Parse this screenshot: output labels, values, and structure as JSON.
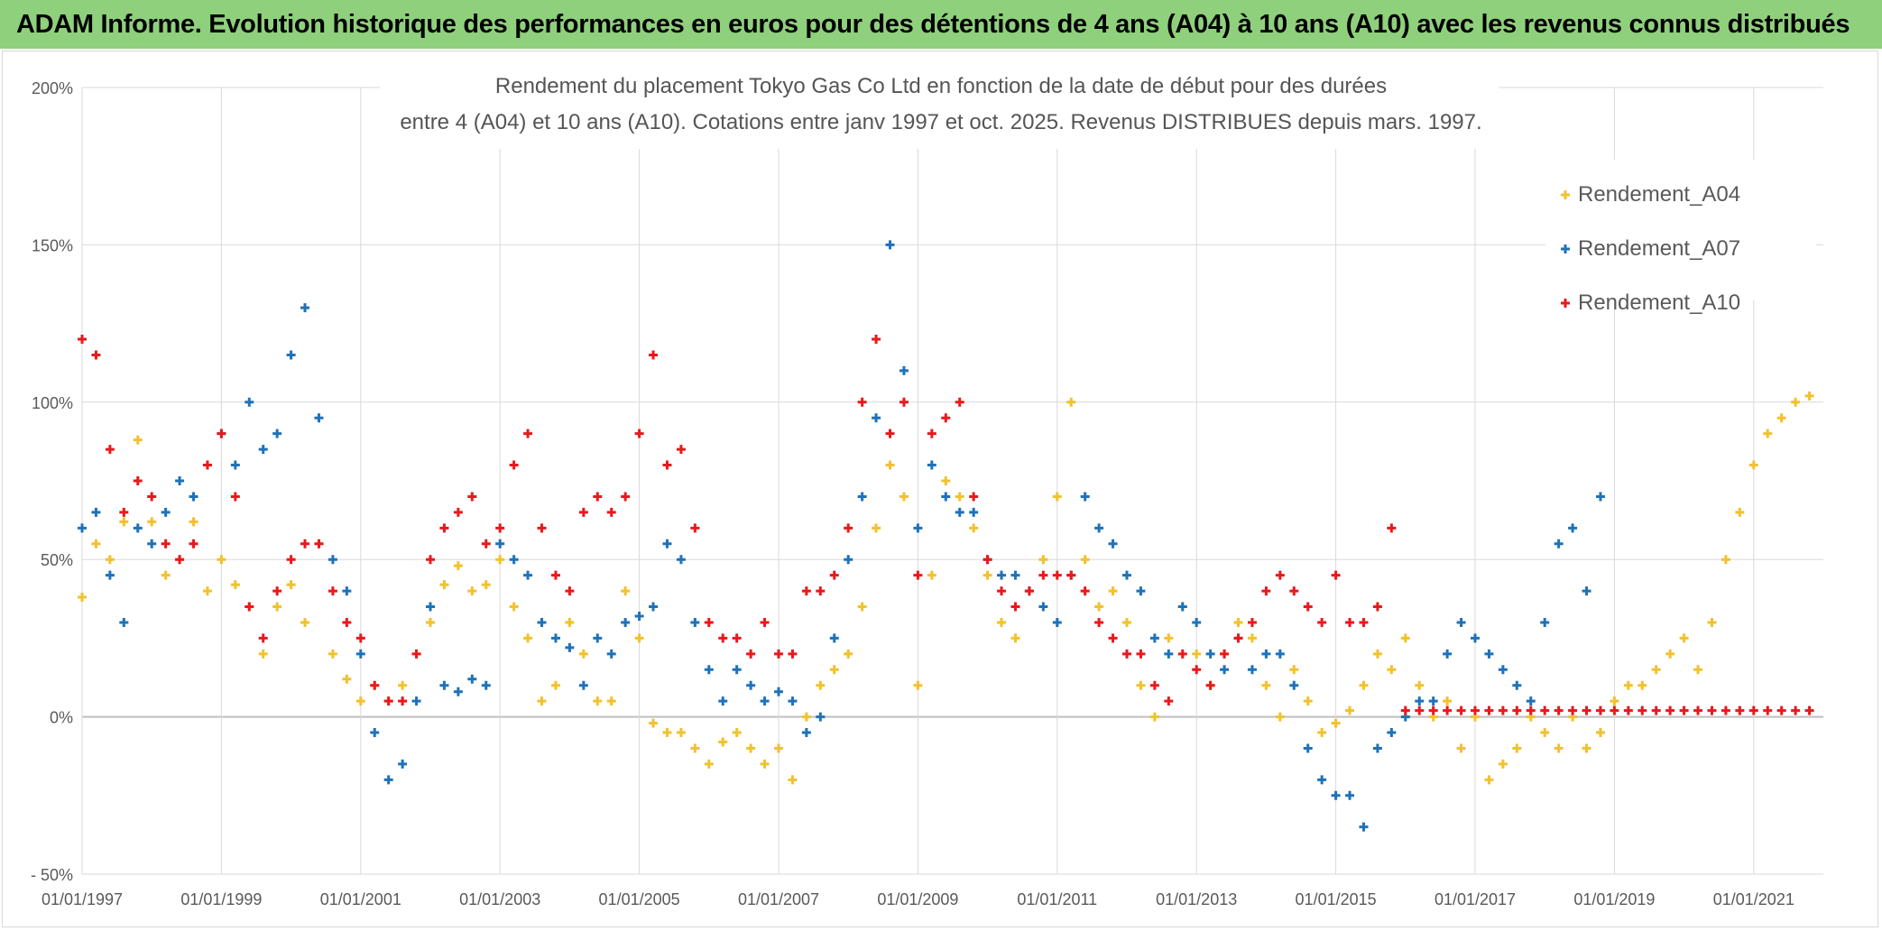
{
  "banner": {
    "title": "ADAM Informe. Evolution historique des performances en euros pour des détentions de 4 ans (A04) à 10 ans (A10) avec les revenus connus distribués"
  },
  "chart_data": {
    "type": "scatter",
    "title_line1": "Rendement du placement Tokyo Gas Co Ltd en fonction de la date de début pour des durées",
    "title_line2": "entre 4 (A04) et 10 ans (A10). Cotations entre janv 1997 et oct. 2025. Revenus DISTRIBUES depuis mars. 1997.",
    "ylim": [
      -50,
      200
    ],
    "y_ticks": [
      -50,
      0,
      50,
      100,
      150,
      200
    ],
    "y_tick_labels": [
      "- 50%",
      "0%",
      "50%",
      "100%",
      "150%",
      "200%"
    ],
    "x_range": [
      1997.0,
      2022.0
    ],
    "x_ticks": [
      1997,
      1999,
      2001,
      2003,
      2005,
      2007,
      2009,
      2011,
      2013,
      2015,
      2017,
      2019,
      2021
    ],
    "x_tick_labels": [
      "01/01/1997",
      "01/01/1999",
      "01/01/2001",
      "01/01/2003",
      "01/01/2005",
      "01/01/2007",
      "01/01/2009",
      "01/01/2011",
      "01/01/2013",
      "01/01/2015",
      "01/01/2017",
      "01/01/2019",
      "01/01/2021"
    ],
    "grid": true,
    "legend_position": "top-right",
    "series": [
      {
        "name": "Rendement_A04",
        "color": "#f2c12e",
        "x": [
          1997.0,
          1997.2,
          1997.4,
          1997.6,
          1997.8,
          1998.0,
          1998.2,
          1998.4,
          1998.6,
          1998.8,
          1999.0,
          1999.2,
          1999.4,
          1999.6,
          1999.8,
          2000.0,
          2000.2,
          2000.4,
          2000.6,
          2000.8,
          2001.0,
          2001.2,
          2001.4,
          2001.6,
          2001.8,
          2002.0,
          2002.2,
          2002.4,
          2002.6,
          2002.8,
          2003.0,
          2003.2,
          2003.4,
          2003.6,
          2003.8,
          2004.0,
          2004.2,
          2004.4,
          2004.6,
          2004.8,
          2005.0,
          2005.2,
          2005.4,
          2005.6,
          2005.8,
          2006.0,
          2006.2,
          2006.4,
          2006.6,
          2006.8,
          2007.0,
          2007.2,
          2007.4,
          2007.6,
          2007.8,
          2008.0,
          2008.2,
          2008.4,
          2008.6,
          2008.8,
          2009.0,
          2009.2,
          2009.4,
          2009.6,
          2009.8,
          2010.0,
          2010.2,
          2010.4,
          2010.6,
          2010.8,
          2011.0,
          2011.2,
          2011.4,
          2011.6,
          2011.8,
          2012.0,
          2012.2,
          2012.4,
          2012.6,
          2012.8,
          2013.0,
          2013.2,
          2013.4,
          2013.6,
          2013.8,
          2014.0,
          2014.2,
          2014.4,
          2014.6,
          2014.8,
          2015.0,
          2015.2,
          2015.4,
          2015.6,
          2015.8,
          2016.0,
          2016.2,
          2016.4,
          2016.6,
          2016.8,
          2017.0,
          2017.2,
          2017.4,
          2017.6,
          2017.8,
          2018.0,
          2018.2,
          2018.4,
          2018.6,
          2018.8,
          2019.0,
          2019.2,
          2019.4,
          2019.6,
          2019.8,
          2020.0,
          2020.2,
          2020.4,
          2020.6,
          2020.8,
          2021.0,
          2021.2,
          2021.4,
          2021.6,
          2021.8
        ],
        "values": [
          38,
          55,
          50,
          62,
          88,
          62,
          45,
          50,
          62,
          40,
          50,
          42,
          35,
          20,
          35,
          42,
          30,
          55,
          20,
          12,
          5,
          10,
          5,
          10,
          20,
          30,
          42,
          48,
          40,
          42,
          50,
          35,
          25,
          5,
          10,
          30,
          20,
          5,
          5,
          40,
          25,
          -2,
          -5,
          -5,
          -10,
          -15,
          -8,
          -5,
          -10,
          -15,
          -10,
          -20,
          0,
          10,
          15,
          20,
          35,
          60,
          80,
          70,
          10,
          45,
          75,
          70,
          60,
          45,
          30,
          25,
          40,
          50,
          70,
          100,
          50,
          35,
          40,
          30,
          10,
          0,
          25,
          35,
          20,
          10,
          20,
          30,
          25,
          10,
          0,
          15,
          5,
          -5,
          -2,
          2,
          10,
          20,
          15,
          25,
          10,
          0,
          5,
          -10,
          0,
          -20,
          -15,
          -10,
          0,
          -5,
          -10,
          0,
          -10,
          -5,
          5,
          10,
          10,
          15,
          20,
          25,
          15,
          30,
          50,
          65,
          80,
          90,
          95,
          100,
          102
        ]
      },
      {
        "name": "Rendement_A07",
        "color": "#1f72b8",
        "x": [
          1997.0,
          1997.2,
          1997.4,
          1997.6,
          1997.8,
          1998.0,
          1998.2,
          1998.4,
          1998.6,
          1998.8,
          1999.0,
          1999.2,
          1999.4,
          1999.6,
          1999.8,
          2000.0,
          2000.2,
          2000.4,
          2000.6,
          2000.8,
          2001.0,
          2001.2,
          2001.4,
          2001.6,
          2001.8,
          2002.0,
          2002.2,
          2002.4,
          2002.6,
          2002.8,
          2003.0,
          2003.2,
          2003.4,
          2003.6,
          2003.8,
          2004.0,
          2004.2,
          2004.4,
          2004.6,
          2004.8,
          2005.0,
          2005.2,
          2005.4,
          2005.6,
          2005.8,
          2006.0,
          2006.2,
          2006.4,
          2006.6,
          2006.8,
          2007.0,
          2007.2,
          2007.4,
          2007.6,
          2007.8,
          2008.0,
          2008.2,
          2008.4,
          2008.6,
          2008.8,
          2009.0,
          2009.2,
          2009.4,
          2009.6,
          2009.8,
          2010.0,
          2010.2,
          2010.4,
          2010.6,
          2010.8,
          2011.0,
          2011.2,
          2011.4,
          2011.6,
          2011.8,
          2012.0,
          2012.2,
          2012.4,
          2012.6,
          2012.8,
          2013.0,
          2013.2,
          2013.4,
          2013.6,
          2013.8,
          2014.0,
          2014.2,
          2014.4,
          2014.6,
          2014.8,
          2015.0,
          2015.2,
          2015.4,
          2015.6,
          2015.8,
          2016.0,
          2016.2,
          2016.4,
          2016.6,
          2016.8,
          2017.0,
          2017.2,
          2017.4,
          2017.6,
          2017.8,
          2018.0,
          2018.2,
          2018.4,
          2018.6,
          2018.8
        ],
        "values": [
          60,
          65,
          45,
          30,
          60,
          55,
          65,
          75,
          70,
          80,
          90,
          80,
          100,
          85,
          90,
          115,
          130,
          95,
          50,
          40,
          20,
          -5,
          -20,
          -15,
          5,
          35,
          10,
          8,
          12,
          10,
          55,
          50,
          45,
          30,
          25,
          22,
          10,
          25,
          20,
          30,
          32,
          35,
          55,
          50,
          30,
          15,
          5,
          15,
          10,
          5,
          8,
          5,
          -5,
          0,
          25,
          50,
          70,
          95,
          150,
          110,
          60,
          80,
          70,
          65,
          65,
          50,
          45,
          45,
          40,
          35,
          30,
          45,
          70,
          60,
          55,
          45,
          40,
          25,
          20,
          35,
          30,
          20,
          15,
          25,
          15,
          20,
          20,
          10,
          -10,
          -20,
          -25,
          -25,
          -35,
          -10,
          -5,
          0,
          5,
          5,
          20,
          30,
          25,
          20,
          15,
          10,
          5,
          30,
          55,
          60,
          40,
          70
        ]
      },
      {
        "name": "Rendement_A10",
        "color": "#e8191c",
        "x": [
          1997.0,
          1997.2,
          1997.4,
          1997.6,
          1997.8,
          1998.0,
          1998.2,
          1998.4,
          1998.6,
          1998.8,
          1999.0,
          1999.2,
          1999.4,
          1999.6,
          1999.8,
          2000.0,
          2000.2,
          2000.4,
          2000.6,
          2000.8,
          2001.0,
          2001.2,
          2001.4,
          2001.6,
          2001.8,
          2002.0,
          2002.2,
          2002.4,
          2002.6,
          2002.8,
          2003.0,
          2003.2,
          2003.4,
          2003.6,
          2003.8,
          2004.0,
          2004.2,
          2004.4,
          2004.6,
          2004.8,
          2005.0,
          2005.2,
          2005.4,
          2005.6,
          2005.8,
          2006.0,
          2006.2,
          2006.4,
          2006.6,
          2006.8,
          2007.0,
          2007.2,
          2007.4,
          2007.6,
          2007.8,
          2008.0,
          2008.2,
          2008.4,
          2008.6,
          2008.8,
          2009.0,
          2009.2,
          2009.4,
          2009.6,
          2009.8,
          2010.0,
          2010.2,
          2010.4,
          2010.6,
          2010.8,
          2011.0,
          2011.2,
          2011.4,
          2011.6,
          2011.8,
          2012.0,
          2012.2,
          2012.4,
          2012.6,
          2012.8,
          2013.0,
          2013.2,
          2013.4,
          2013.6,
          2013.8,
          2014.0,
          2014.2,
          2014.4,
          2014.6,
          2014.8,
          2015.0,
          2015.2,
          2015.4,
          2015.6,
          2015.8,
          2016.0,
          2016.2,
          2016.4,
          2016.6,
          2016.8,
          2017.0,
          2017.2,
          2017.4,
          2017.6,
          2017.8,
          2018.0,
          2018.2,
          2018.4,
          2018.6,
          2018.8,
          2019.0,
          2019.2,
          2019.4,
          2019.6,
          2019.8,
          2020.0,
          2020.2,
          2020.4,
          2020.6,
          2020.8,
          2021.0,
          2021.2,
          2021.4,
          2021.6,
          2021.8
        ],
        "values": [
          120,
          115,
          85,
          65,
          75,
          70,
          55,
          50,
          55,
          80,
          90,
          70,
          35,
          25,
          40,
          50,
          55,
          55,
          40,
          30,
          25,
          10,
          5,
          5,
          20,
          50,
          60,
          65,
          70,
          55,
          60,
          80,
          90,
          60,
          45,
          40,
          65,
          70,
          65,
          70,
          90,
          115,
          80,
          85,
          60,
          30,
          25,
          25,
          20,
          30,
          20,
          20,
          40,
          40,
          45,
          60,
          100,
          120,
          90,
          100,
          45,
          90,
          95,
          100,
          70,
          50,
          40,
          35,
          40,
          45,
          45,
          45,
          40,
          30,
          25,
          20,
          20,
          10,
          5,
          20,
          15,
          10,
          20,
          25,
          30,
          40,
          45,
          40,
          35,
          30,
          45,
          30,
          30,
          35,
          60,
          2,
          2,
          2,
          2,
          2,
          2,
          2,
          2,
          2,
          2,
          2,
          2,
          2,
          2,
          2,
          2,
          2,
          2,
          2,
          2,
          2,
          2,
          2,
          2,
          2,
          2,
          2,
          2,
          2,
          2
        ]
      }
    ]
  }
}
